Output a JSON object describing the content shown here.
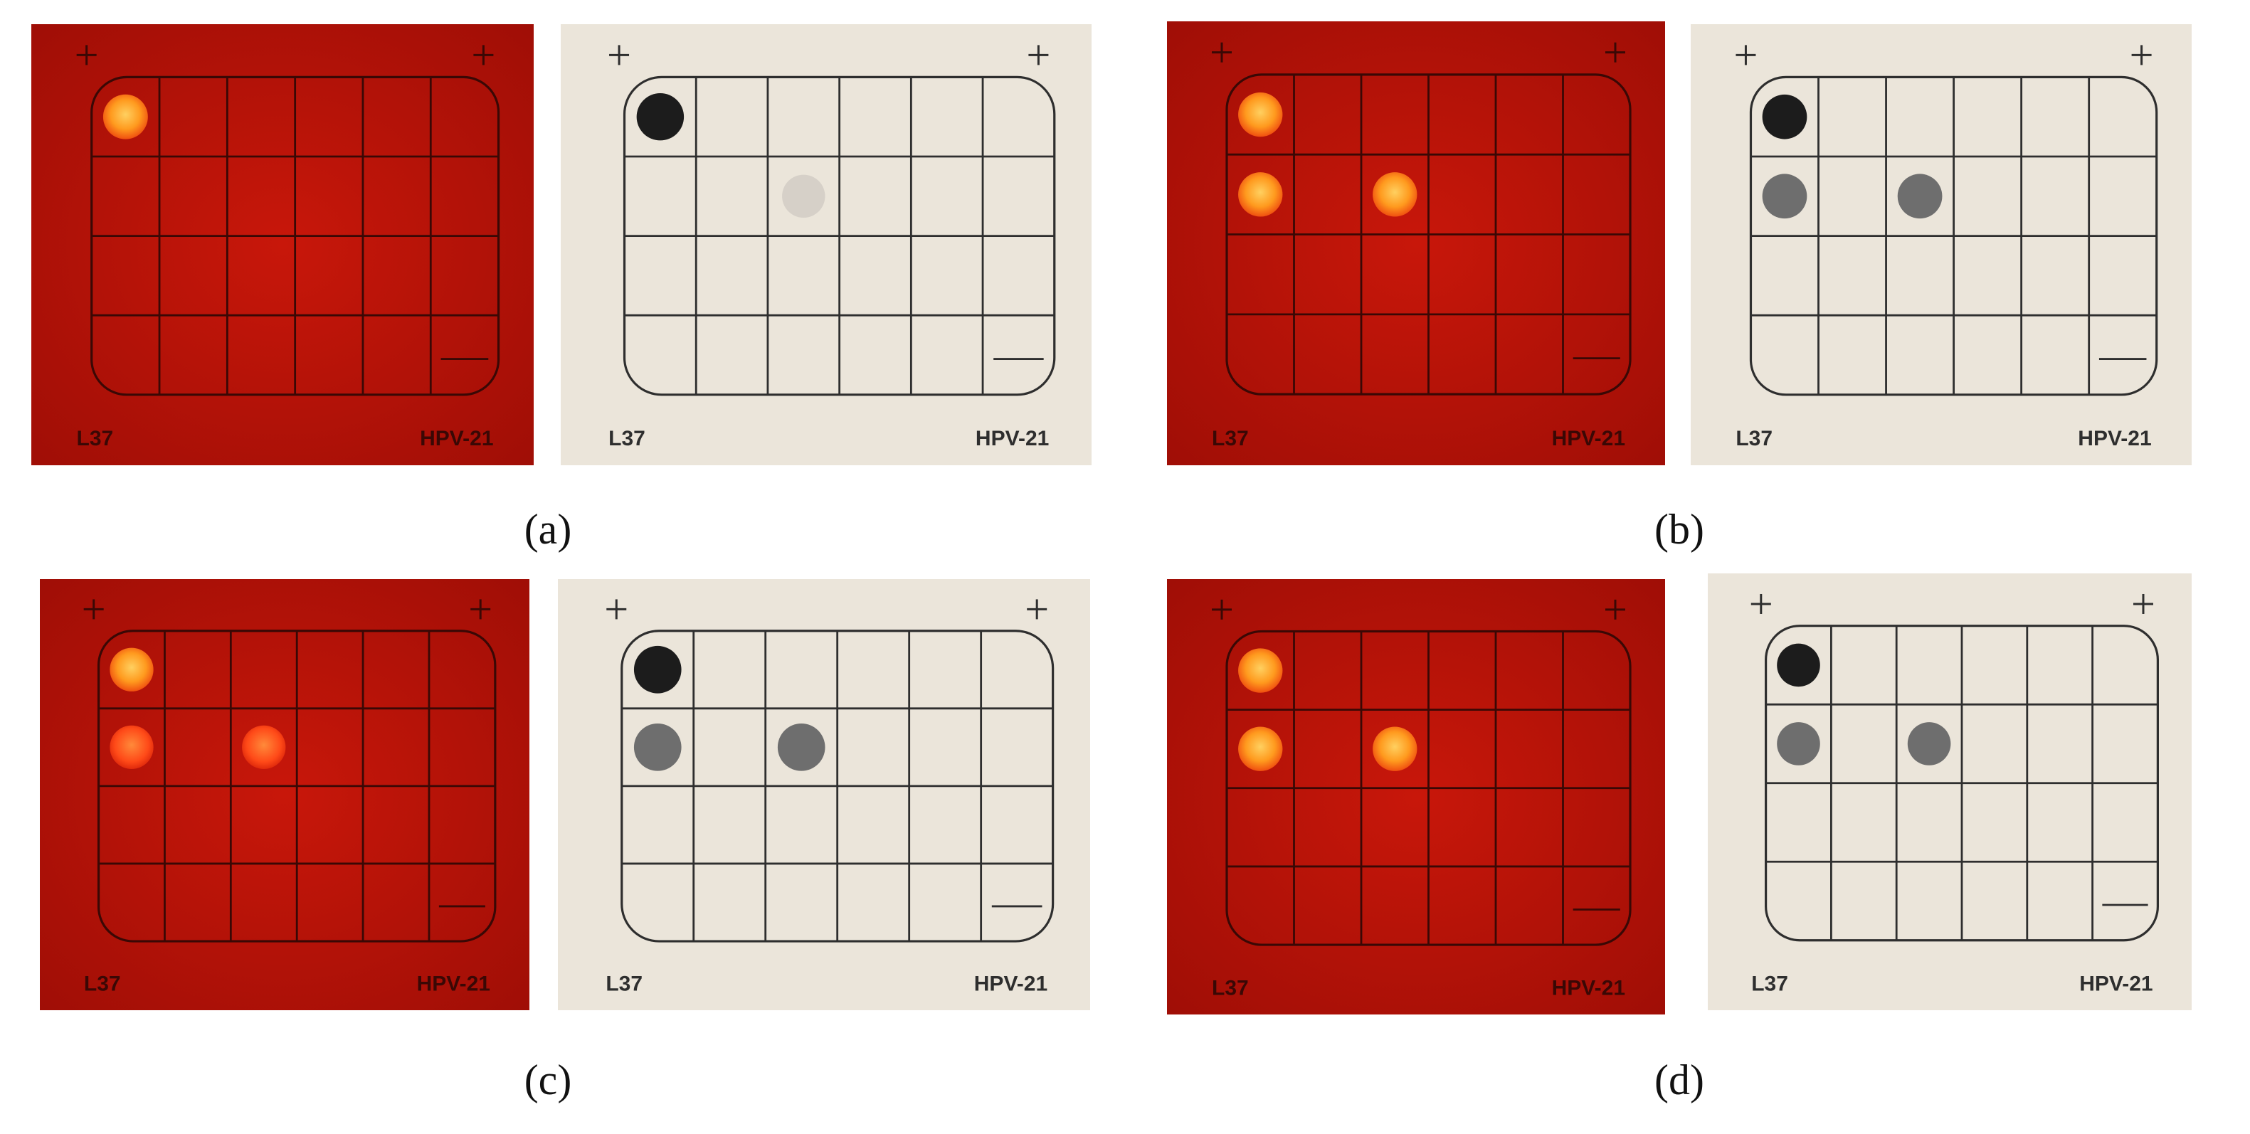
{
  "panels": [
    {
      "label": "(a)",
      "cards": [
        {
          "left_label": "L37",
          "right_label": "HPV-21"
        },
        {
          "left_label": "L37",
          "right_label": "HPV-21"
        }
      ]
    },
    {
      "label": "(b)",
      "cards": [
        {
          "left_label": "L37",
          "right_label": "HPV-21"
        },
        {
          "left_label": "L37",
          "right_label": "HPV-21"
        }
      ]
    },
    {
      "label": "(c)",
      "cards": [
        {
          "left_label": "L37",
          "right_label": "HPV-21"
        },
        {
          "left_label": "L37",
          "right_label": "HPV-21"
        }
      ]
    },
    {
      "label": "(d)",
      "cards": [
        {
          "left_label": "L37",
          "right_label": "HPV-21"
        },
        {
          "left_label": "L37",
          "right_label": "HPV-21"
        }
      ]
    }
  ]
}
